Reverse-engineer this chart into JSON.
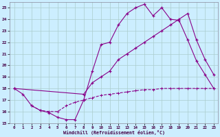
{
  "background_color": "#cceeff",
  "grid_color": "#aacccc",
  "line_color": "#880088",
  "xlabel": "Windchill (Refroidissement éolien,°C)",
  "xlim": [
    -0.5,
    23.5
  ],
  "ylim": [
    15,
    25.5
  ],
  "yticks": [
    15,
    16,
    17,
    18,
    19,
    20,
    21,
    22,
    23,
    24,
    25
  ],
  "xticks": [
    0,
    1,
    2,
    3,
    4,
    5,
    6,
    7,
    8,
    9,
    10,
    11,
    12,
    13,
    14,
    15,
    16,
    17,
    18,
    19,
    20,
    21,
    22,
    23
  ],
  "line1_x": [
    0,
    1,
    2,
    3,
    4,
    5,
    6,
    7,
    8,
    9,
    10,
    11,
    12,
    13,
    14,
    15,
    16,
    17,
    18,
    19,
    20,
    21,
    22,
    23
  ],
  "line1_y": [
    18,
    17.5,
    16.5,
    16.1,
    15.9,
    15.5,
    15.3,
    15.3,
    17.0,
    19.5,
    21.8,
    22.0,
    23.5,
    24.5,
    25.0,
    25.3,
    24.3,
    25.0,
    24.0,
    23.9,
    22.2,
    20.4,
    19.2,
    18.0
  ],
  "line2_x": [
    0,
    8,
    9,
    10,
    11,
    12,
    13,
    14,
    15,
    16,
    17,
    18,
    19,
    20,
    21,
    22,
    23
  ],
  "line2_y": [
    18,
    17.5,
    18.5,
    19.0,
    19.5,
    20.5,
    21.0,
    21.5,
    22.0,
    22.5,
    23.0,
    23.5,
    24.0,
    24.5,
    22.2,
    20.5,
    19.2
  ],
  "line3_x": [
    2,
    3,
    4,
    5,
    6,
    7,
    8,
    9,
    10,
    11,
    12,
    13,
    14,
    15,
    16,
    17,
    18,
    19,
    20,
    21,
    22,
    23
  ],
  "line3_y": [
    16.5,
    16.1,
    16.0,
    16.0,
    16.5,
    16.8,
    17.0,
    17.2,
    17.4,
    17.5,
    17.6,
    17.7,
    17.8,
    17.9,
    17.9,
    18.0,
    18.0,
    18.0,
    18.0,
    18.0,
    18.0,
    18.0
  ]
}
